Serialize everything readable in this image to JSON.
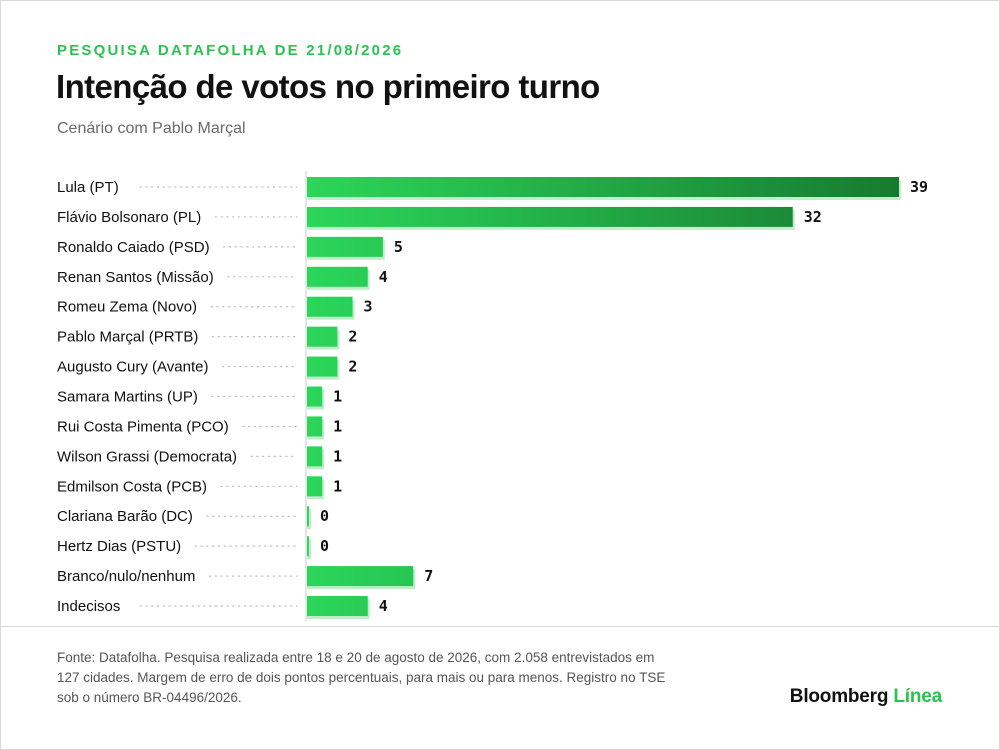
{
  "header": {
    "kicker": "PESQUISA DATAFOLHA DE 21/08/2026",
    "title": "Intenção de votos no primeiro turno",
    "subtitle": "Cenário com Pablo Marçal"
  },
  "chart_data": {
    "type": "bar",
    "orientation": "horizontal",
    "title": "Intenção de votos no primeiro turno",
    "subtitle": "Cenário com Pablo Marçal",
    "categories": [
      "Lula (PT)",
      "Flávio Bolsonaro (PL)",
      "Ronaldo Caiado (PSD)",
      "Renan Santos (Missão)",
      "Romeu Zema (Novo)",
      "Pablo Marçal (PRTB)",
      "Augusto Cury (Avante)",
      "Samara Martins (UP)",
      "Rui Costa Pimenta (PCO)",
      "Wilson Grassi (Democrata)",
      "Edmilson Costa (PCB)",
      "Clariana Barão (DC)",
      "Hertz Dias (PSTU)",
      "Branco/nulo/nenhum",
      "Indecisos"
    ],
    "values": [
      39,
      32,
      5,
      4,
      3,
      2,
      2,
      1,
      1,
      1,
      1,
      0,
      0,
      7,
      4
    ],
    "value_labels": [
      "39",
      "32",
      "5",
      "4",
      "3",
      "2",
      "2",
      "1",
      "1",
      "1",
      "1",
      "0",
      "0",
      "7",
      "4"
    ],
    "xlim": [
      0,
      39
    ],
    "grid": false,
    "legend": "none",
    "colors": {
      "bar_light": "#2bd65a",
      "bar_dark": "#187a30",
      "bar_shadow": "#bfeec9",
      "leader_dots": "#bdbdbd",
      "axis": "#cccccc"
    }
  },
  "footer": {
    "source_text": "Fonte: Datafolha. Pesquisa realizada entre 18 e 20 de agosto de 2026, com 2.058 entrevistados em 127 cidades. Margem de erro de dois pontos percentuais, para mais ou para menos. Registro no TSE sob o número BR-04496/2026.",
    "brand_part1": "Bloomberg",
    "brand_part2": "Línea"
  }
}
